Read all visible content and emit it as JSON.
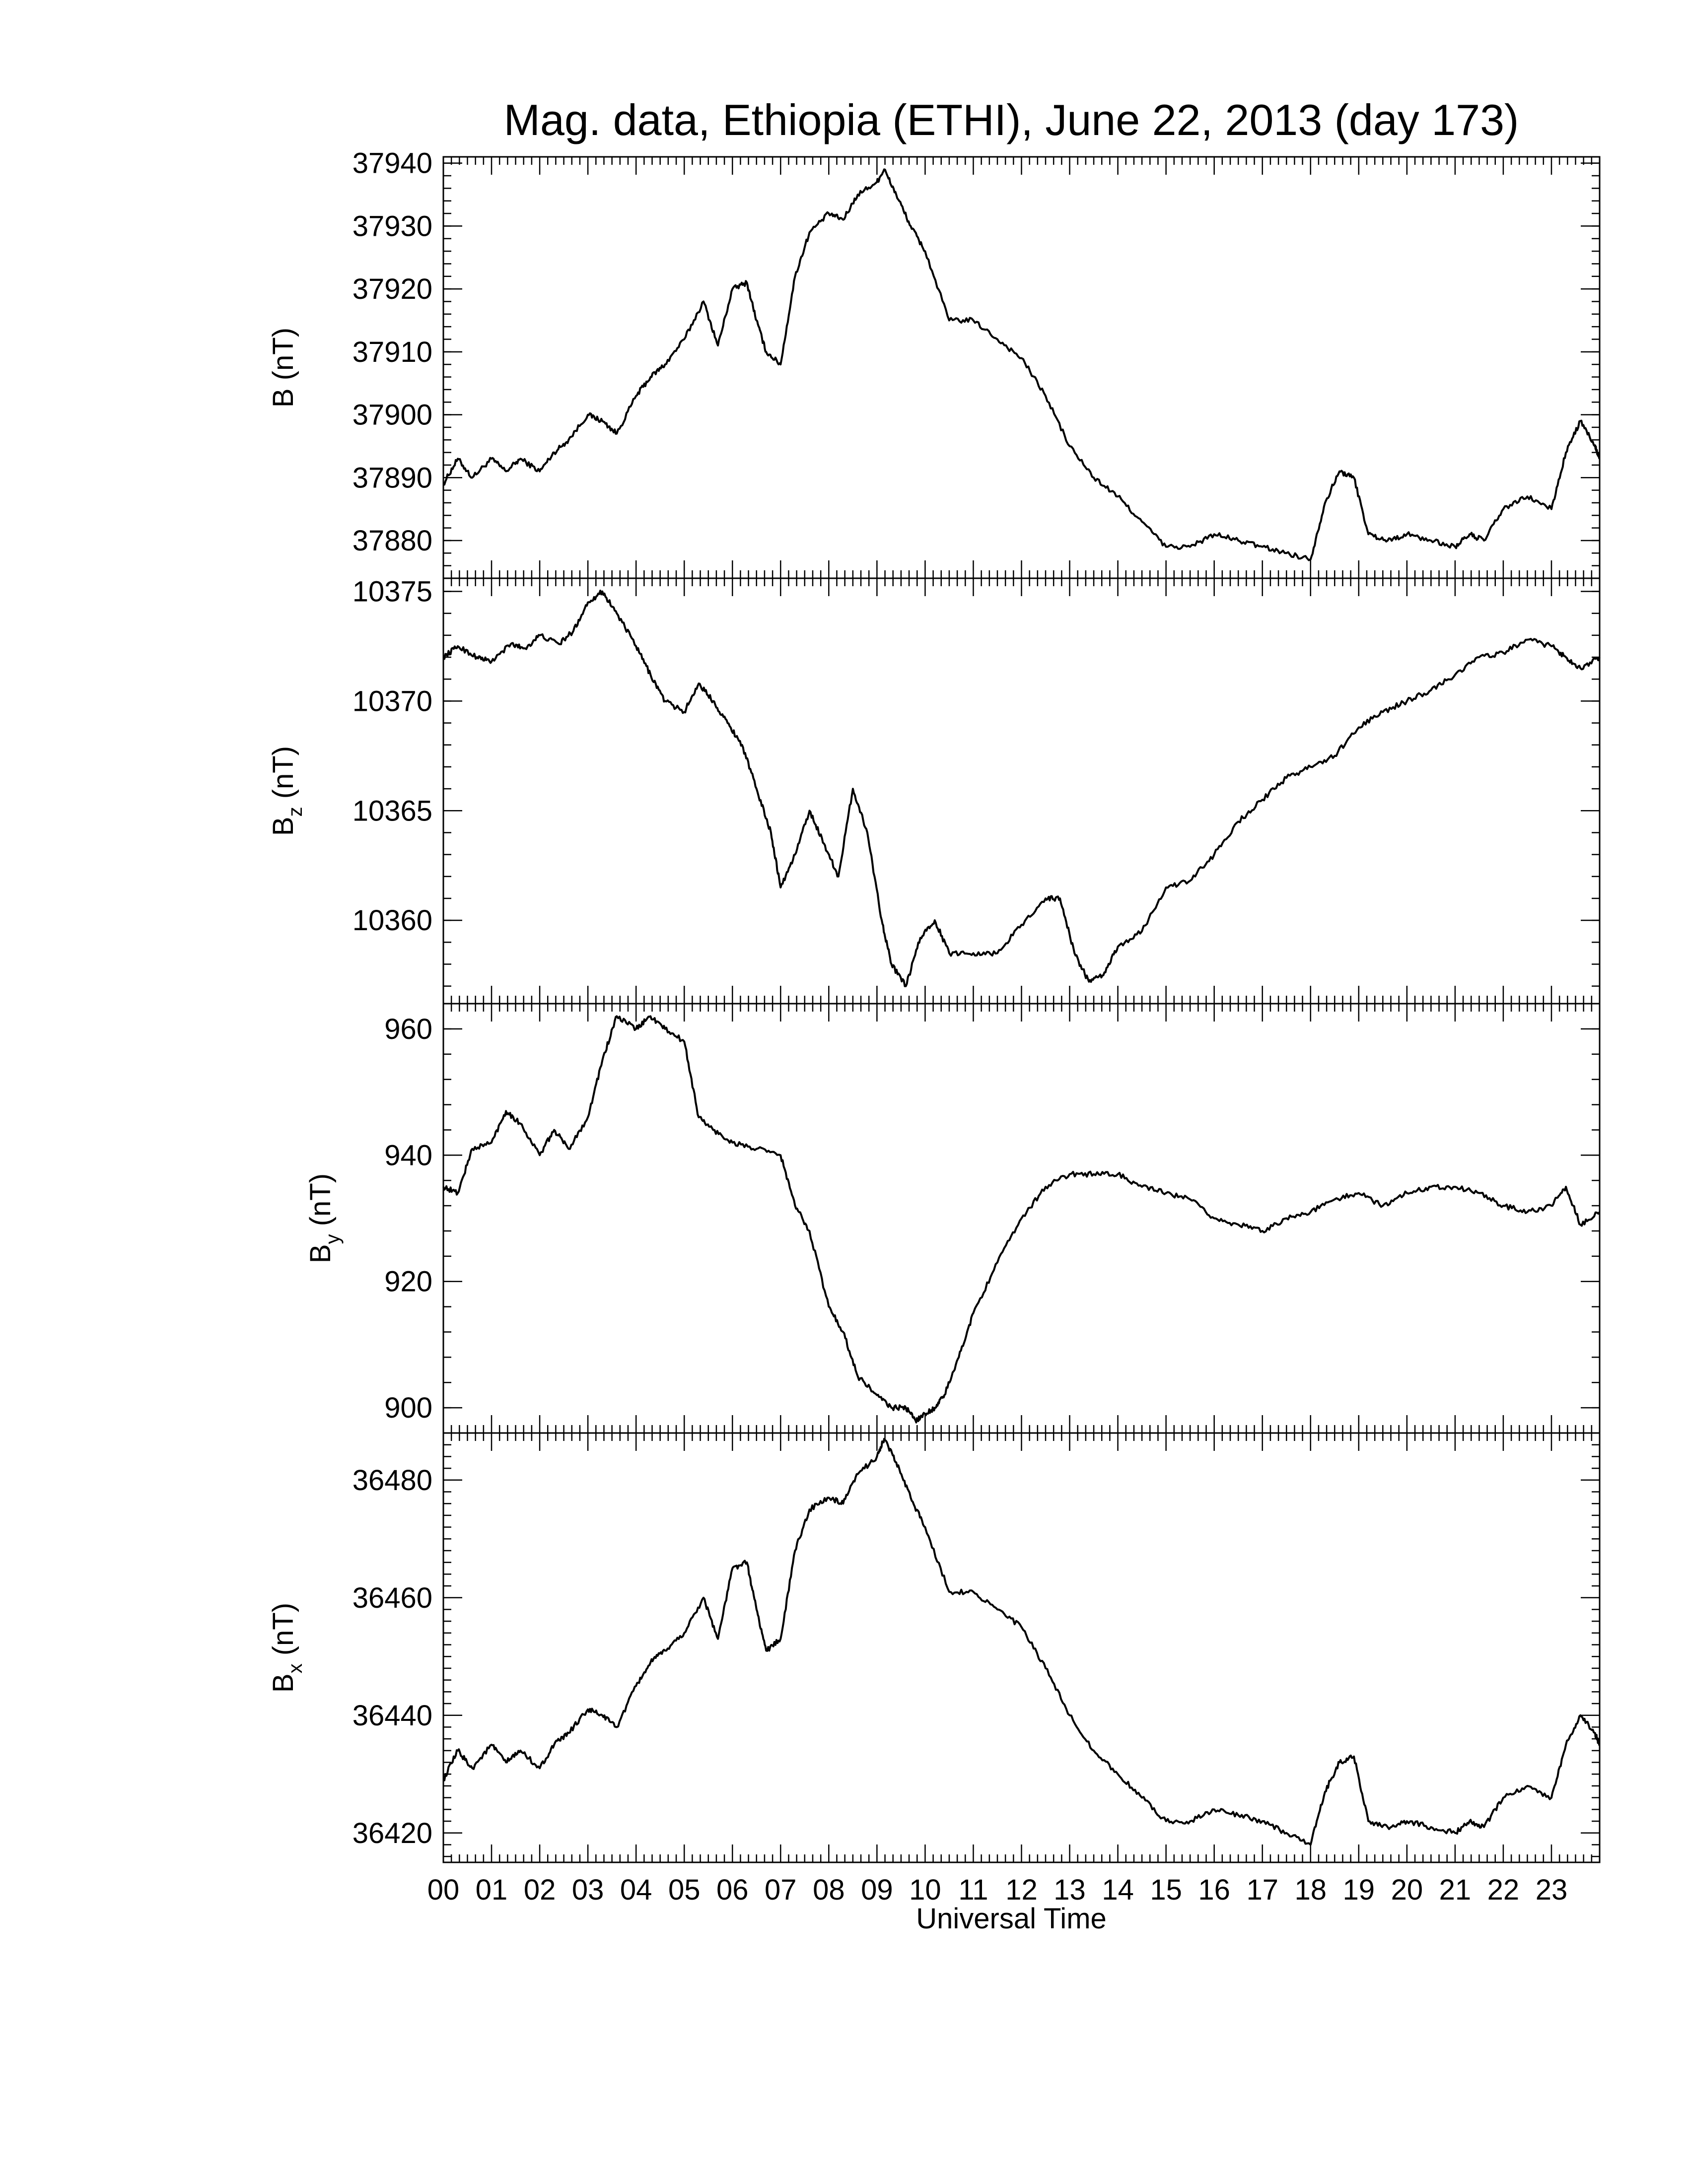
{
  "title": "Mag. data, Ethiopia (ETHI), June 22, 2013 (day 173)",
  "line_color": "#000000",
  "chart_data": [
    {
      "type": "line",
      "panel": "B",
      "ylabel": "B (nT)",
      "ylabel_main": "B",
      "ylabel_sub": "",
      "ylabel_unit": " (nT)",
      "ylim": [
        37874,
        37941
      ],
      "yticks": [
        37880,
        37890,
        37900,
        37910,
        37920,
        37930,
        37940
      ],
      "y_minor_step": 2,
      "x": [
        0,
        0.3,
        0.6,
        1.0,
        1.3,
        1.6,
        2.0,
        2.3,
        2.6,
        3.0,
        3.3,
        3.6,
        4.0,
        4.3,
        4.6,
        5.0,
        5.4,
        5.7,
        6.0,
        6.3,
        6.5,
        6.7,
        7.0,
        7.3,
        7.6,
        8.0,
        8.3,
        8.6,
        9.0,
        9.15,
        9.4,
        9.7,
        10.0,
        10.5,
        11.0,
        11.5,
        12.0,
        12.5,
        13.0,
        13.5,
        14.0,
        14.5,
        15.0,
        15.5,
        16.0,
        16.5,
        17.0,
        17.5,
        18.0,
        18.3,
        18.6,
        18.9,
        19.2,
        19.6,
        20.0,
        20.5,
        21.0,
        21.3,
        21.6,
        22.0,
        22.5,
        23.0,
        23.3,
        23.6,
        23.9,
        24.0
      ],
      "y": [
        37889,
        37893,
        37890,
        37893,
        37891,
        37893,
        37891,
        37894,
        37896,
        37900,
        37899,
        37897,
        37903,
        37906,
        37908,
        37912,
        37918,
        37911,
        37920,
        37921,
        37915,
        37910,
        37908,
        37922,
        37929,
        37932,
        37931,
        37935,
        37937,
        37939,
        37935,
        37930,
        37926,
        37915,
        37915,
        37912,
        37909,
        37903,
        37895,
        37890,
        37887,
        37883,
        37879,
        37879,
        37881,
        37880,
        37879,
        37878,
        37877,
        37886,
        37891,
        37890,
        37881,
        37880,
        37881,
        37880,
        37879,
        37881,
        37880,
        37885,
        37887,
        37885,
        37894,
        37899,
        37895,
        37893
      ]
    },
    {
      "type": "line",
      "panel": "Bz",
      "ylabel": "Bz (nT)",
      "ylabel_main": "B",
      "ylabel_sub": "z",
      "ylabel_unit": " (nT)",
      "ylim": [
        10356.2,
        10375.6
      ],
      "yticks": [
        10360,
        10365,
        10370,
        10375
      ],
      "y_minor_step": 1,
      "x": [
        0,
        0.3,
        0.7,
        1.0,
        1.4,
        1.7,
        2.0,
        2.4,
        2.7,
        3.0,
        3.3,
        3.6,
        4.0,
        4.3,
        4.6,
        5.0,
        5.3,
        5.6,
        5.9,
        6.2,
        6.5,
        6.8,
        7.0,
        7.3,
        7.6,
        7.9,
        8.2,
        8.5,
        8.8,
        9.1,
        9.3,
        9.6,
        9.9,
        10.2,
        10.5,
        11.0,
        11.5,
        12.0,
        12.5,
        12.8,
        13.1,
        13.4,
        13.7,
        14.0,
        14.5,
        15.0,
        15.5,
        16.0,
        16.5,
        17.0,
        17.5,
        18.0,
        18.5,
        19.0,
        19.5,
        20.0,
        20.5,
        21.0,
        21.5,
        22.0,
        22.5,
        23.0,
        23.3,
        23.6,
        24.0
      ],
      "y": [
        10372,
        10372.5,
        10372,
        10371.8,
        10372.6,
        10372.4,
        10373,
        10372.6,
        10373.2,
        10374.5,
        10375,
        10374,
        10372.5,
        10371.2,
        10370,
        10369.5,
        10370.8,
        10370,
        10369,
        10368,
        10366,
        10364,
        10361.5,
        10363,
        10365,
        10363.5,
        10362,
        10366,
        10364,
        10360,
        10358,
        10357,
        10359.2,
        10360,
        10358.5,
        10358.5,
        10358.5,
        10359.8,
        10361,
        10361,
        10358.5,
        10357.2,
        10357.5,
        10358.8,
        10359.5,
        10361.5,
        10361.8,
        10363,
        10364.5,
        10365.5,
        10366.5,
        10367,
        10367.5,
        10368.8,
        10369.5,
        10370,
        10370.5,
        10371.2,
        10372,
        10372.2,
        10372.8,
        10372.5,
        10372,
        10371.5,
        10372
      ]
    },
    {
      "type": "line",
      "panel": "By",
      "ylabel": "By (nT)",
      "ylabel_main": "B",
      "ylabel_sub": "y",
      "ylabel_unit": " (nT)",
      "ylim": [
        896,
        964
      ],
      "yticks": [
        900,
        920,
        940,
        960
      ],
      "y_minor_step": 4,
      "x": [
        0,
        0.3,
        0.6,
        1.0,
        1.3,
        1.6,
        2.0,
        2.3,
        2.6,
        3.0,
        3.3,
        3.6,
        4.0,
        4.3,
        4.6,
        5.0,
        5.3,
        5.6,
        6.0,
        6.5,
        7.0,
        7.3,
        7.6,
        8.0,
        8.3,
        8.6,
        9.0,
        9.3,
        9.6,
        9.8,
        10.0,
        10.2,
        10.4,
        10.7,
        11.0,
        11.5,
        12.0,
        12.5,
        13.0,
        13.5,
        14.0,
        14.5,
        15.0,
        15.5,
        16.0,
        16.5,
        17.0,
        17.5,
        18.0,
        18.5,
        19.0,
        19.5,
        20.0,
        20.5,
        21.0,
        21.5,
        22.0,
        22.5,
        23.0,
        23.3,
        23.6,
        24.0
      ],
      "y": [
        935,
        934,
        941,
        942,
        947,
        945,
        940,
        944,
        941,
        946,
        955,
        962,
        960,
        962,
        960,
        958,
        946,
        944,
        942,
        941,
        940,
        932,
        928,
        916,
        912,
        905,
        902,
        900,
        900,
        898,
        899,
        900,
        902,
        908,
        915,
        923,
        930,
        935,
        937,
        937,
        937,
        935,
        934,
        933,
        930,
        929,
        928,
        930,
        931,
        933,
        934,
        932,
        934,
        935,
        935,
        934,
        932,
        931,
        932,
        935,
        929,
        931
      ]
    },
    {
      "type": "line",
      "panel": "Bx",
      "ylabel": "Bx (nT)",
      "ylabel_main": "B",
      "ylabel_sub": "x",
      "ylabel_unit": " (nT)",
      "ylim": [
        36415,
        36488
      ],
      "yticks": [
        36420,
        36440,
        36460,
        36480
      ],
      "y_minor_step": 2,
      "x": [
        0,
        0.3,
        0.6,
        1.0,
        1.3,
        1.6,
        2.0,
        2.3,
        2.6,
        3.0,
        3.3,
        3.6,
        4.0,
        4.3,
        4.6,
        5.0,
        5.4,
        5.7,
        6.0,
        6.3,
        6.5,
        6.7,
        7.0,
        7.3,
        7.6,
        8.0,
        8.3,
        8.6,
        9.0,
        9.15,
        9.4,
        9.7,
        10.0,
        10.5,
        11.0,
        11.5,
        12.0,
        12.5,
        13.0,
        13.5,
        14.0,
        14.5,
        15.0,
        15.5,
        16.0,
        16.5,
        17.0,
        17.5,
        18.0,
        18.3,
        18.6,
        18.9,
        19.2,
        19.6,
        20.0,
        20.5,
        21.0,
        21.3,
        21.6,
        22.0,
        22.5,
        23.0,
        23.3,
        23.6,
        23.9,
        24.0
      ],
      "y": [
        36429,
        36434,
        36431,
        36435,
        36432,
        36434,
        36431,
        36435,
        36437,
        36441,
        36440,
        36438,
        36445,
        36449,
        36451,
        36454,
        36460,
        36453,
        36465,
        36466,
        36458,
        36451,
        36453,
        36468,
        36475,
        36477,
        36476,
        36481,
        36484,
        36487,
        36483,
        36477,
        36472,
        36461,
        36461,
        36458,
        36455,
        36448,
        36440,
        36434,
        36430,
        36426,
        36422,
        36422,
        36424,
        36423,
        36422,
        36420,
        36418,
        36427,
        36432,
        36433,
        36422,
        36421,
        36422,
        36421,
        36420,
        36422,
        36421,
        36426,
        36428,
        36426,
        36435,
        36440,
        36437,
        36435
      ]
    }
  ],
  "xaxis": {
    "label": "Universal Time",
    "xlim": [
      0,
      24
    ],
    "tick_labels": [
      "00",
      "01",
      "02",
      "03",
      "04",
      "05",
      "06",
      "07",
      "08",
      "09",
      "10",
      "11",
      "12",
      "13",
      "14",
      "15",
      "16",
      "17",
      "18",
      "19",
      "20",
      "21",
      "22",
      "23"
    ]
  }
}
